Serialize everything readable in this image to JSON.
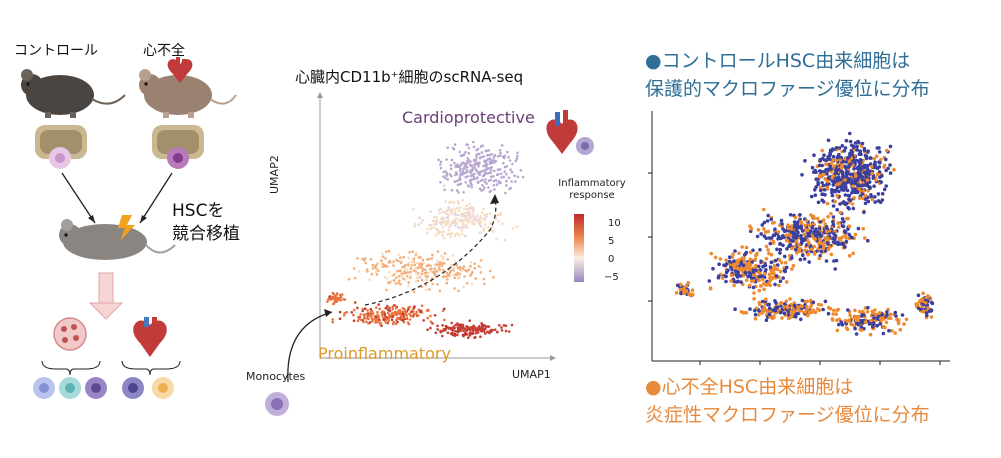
{
  "left_panel": {
    "control_label": "コントロール",
    "hf_label": "心不全",
    "transplant_line1": "HSCを",
    "transplant_line2": "競合移植"
  },
  "middle_panel": {
    "title": "心臓内CD11b⁺細胞のscRNA-seq",
    "cardioprotective": "Cardioprotective",
    "proinflammatory": "Proinflammatory",
    "monocytes": "Monocytes",
    "umap1": "UMAP1",
    "umap2": "UMAP2",
    "legend_title": "Inflammatory response",
    "legend_ticks": [
      "10",
      "5",
      "0",
      "−5"
    ]
  },
  "right_panel": {
    "top_line1": "●コントロールHSC由来細胞は",
    "top_line2": "保護的マクロファージ優位に分布",
    "bottom_line1": "●心不全HSC由来細胞は",
    "bottom_line2": "炎症性マクロファージ優位に分布"
  },
  "colors": {
    "control": "#3b3f9e",
    "heart_failure": "#ef8a2e",
    "blue_text": "#2f6f97",
    "orange_text": "#e88a3b"
  }
}
